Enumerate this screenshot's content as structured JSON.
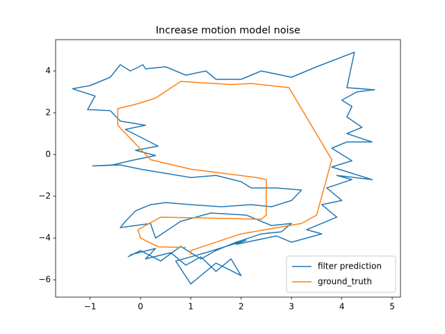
{
  "chart_data": {
    "type": "line",
    "title": "Increase motion model noise",
    "xlim": [
      -1.685,
      5.165
    ],
    "ylim": [
      -6.83,
      5.5
    ],
    "xticks": [
      {
        "value": -1,
        "label": "−1"
      },
      0,
      1,
      2,
      3,
      4,
      5
    ],
    "yticks": [
      {
        "value": -6,
        "label": "−6"
      },
      {
        "value": -4,
        "label": "−4"
      },
      {
        "value": -2,
        "label": "−2"
      },
      0,
      2,
      4
    ],
    "legend": "lower right",
    "series": [
      {
        "name": "filter prediction",
        "color": "#1f77b4",
        "x": [
          -0.2,
          0.3,
          0.1,
          0.6,
          0.9,
          1.2,
          1.5,
          1.8,
          2.0,
          1.5,
          1.0,
          0.7,
          1.3,
          2.1,
          1.9,
          2.7,
          3.0,
          3.6,
          3.3,
          3.9,
          3.6,
          4.0,
          3.7,
          4.2,
          3.9,
          4.6,
          3.8,
          4.2,
          3.8,
          4.1,
          4.6,
          4.1,
          4.4,
          4.1,
          4.2,
          4.0,
          4.3,
          4.65,
          4.1,
          4.25,
          3.5,
          3.0,
          2.4,
          2.0,
          1.5,
          1.3,
          0.9,
          0.5,
          0.1,
          0.05,
          -0.2,
          -0.4,
          -0.6,
          -0.8,
          -1.0,
          -1.35,
          -0.9,
          -1.05,
          -0.6,
          -0.4,
          0.1,
          -0.3,
          0.35,
          -0.1,
          0.3,
          -0.2,
          -0.55,
          -0.95,
          -0.4,
          0.0,
          0.5,
          1.0,
          1.5,
          2.0,
          2.2,
          2.7,
          3.2,
          3.0,
          2.6,
          2.2,
          1.6,
          1.0,
          0.5,
          0.2,
          -0.1,
          -0.3,
          -0.4,
          0.2,
          0.3,
          0.8,
          1.4,
          2.1,
          2.6,
          3.0,
          2.8,
          2.4,
          1.9,
          1.5,
          1.2,
          0.8,
          0.4,
          0.0,
          -0.25
        ],
        "values": [
          -4.8,
          -4.5,
          -5.0,
          -4.7,
          -5.3,
          -4.9,
          -5.6,
          -5.0,
          -5.8,
          -5.2,
          -6.2,
          -5.1,
          -4.7,
          -4.1,
          -4.3,
          -3.9,
          -4.2,
          -3.8,
          -3.6,
          -3.0,
          -2.4,
          -2.2,
          -1.6,
          -1.2,
          -1.0,
          -1.2,
          -0.6,
          -0.3,
          0.3,
          0.6,
          0.6,
          1.0,
          1.3,
          1.8,
          2.3,
          2.6,
          3.0,
          3.1,
          3.2,
          4.9,
          4.2,
          3.7,
          4.0,
          3.6,
          3.6,
          4.0,
          3.8,
          4.2,
          4.1,
          4.3,
          4.0,
          4.3,
          3.7,
          3.5,
          3.3,
          3.15,
          2.8,
          2.15,
          2.1,
          1.6,
          1.4,
          1.2,
          0.4,
          0.2,
          -0.05,
          -0.3,
          -0.5,
          -0.55,
          -0.5,
          -0.7,
          -0.9,
          -1.1,
          -1.0,
          -1.3,
          -1.6,
          -1.6,
          -1.7,
          -2.2,
          -2.5,
          -2.4,
          -2.5,
          -2.4,
          -2.3,
          -2.4,
          -2.7,
          -3.2,
          -3.5,
          -3.3,
          -4.0,
          -3.2,
          -2.8,
          -2.9,
          -3.4,
          -3.3,
          -3.7,
          -3.8,
          -4.2,
          -4.6,
          -5.0,
          -4.4,
          -5.1,
          -4.6,
          -4.9
        ]
      },
      {
        "name": "ground_truth",
        "color": "#ff7f0e",
        "x": [
          0.9,
          0.35,
          0.0,
          -0.05,
          0.4,
          1.5,
          2.4,
          2.5,
          2.5,
          2.3,
          1.0,
          0.2,
          -0.45,
          -0.45,
          -0.1,
          0.3,
          0.8,
          1.8,
          2.2,
          2.95,
          3.8,
          3.5,
          3.2,
          2.0,
          1.0,
          1.0
        ],
        "values": [
          -4.45,
          -4.42,
          -4.0,
          -3.6,
          -3.0,
          -3.05,
          -3.1,
          -2.9,
          -1.2,
          -1.1,
          -0.7,
          -0.25,
          1.4,
          2.2,
          2.4,
          2.7,
          3.5,
          3.35,
          3.4,
          3.2,
          -0.25,
          -2.9,
          -3.3,
          -3.8,
          -4.6,
          -4.8
        ]
      }
    ]
  }
}
